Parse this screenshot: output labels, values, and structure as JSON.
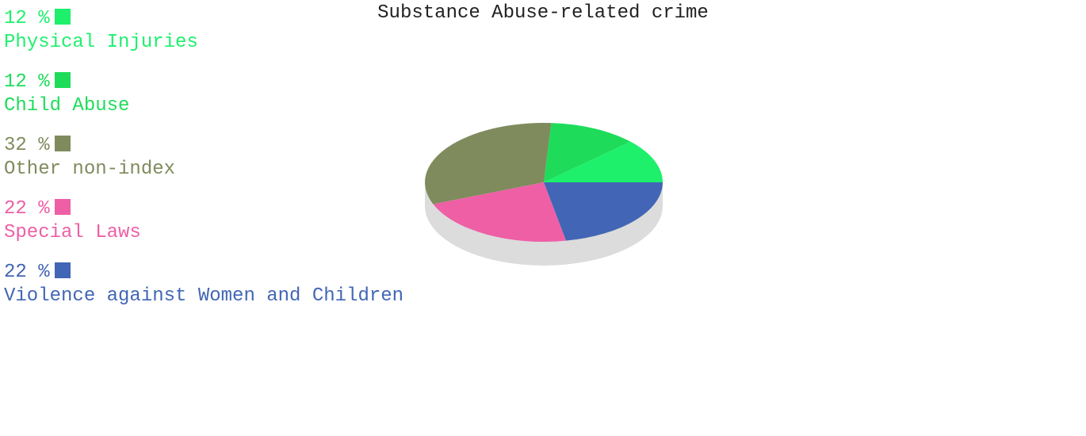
{
  "chart_data": {
    "type": "pie",
    "title": "Substance Abuse-related crime",
    "slices": [
      {
        "label": "Physical Injuries",
        "value": 12,
        "display": "12 %",
        "color": "#1ef06c"
      },
      {
        "label": "Child Abuse",
        "value": 12,
        "display": "12 %",
        "color": "#1edc5a"
      },
      {
        "label": "Other non-index",
        "value": 32,
        "display": "32 %",
        "color": "#7f8b5d"
      },
      {
        "label": "Special Laws",
        "value": 22,
        "display": "22 %",
        "color": "#ee5fa5"
      },
      {
        "label": "Violence against Women and Children",
        "value": 22,
        "display": "22 %",
        "color": "#4266b5"
      }
    ],
    "legend_position": "left",
    "style": "3d"
  }
}
